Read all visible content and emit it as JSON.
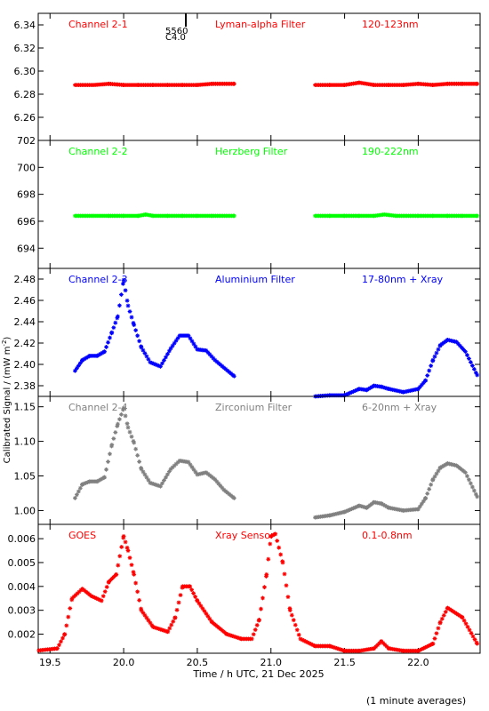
{
  "figure": {
    "ylabel": "Calibrated Signal / (mW m",
    "ylabel_sup": "-2",
    "ylabel_end": ")",
    "xlabel": "Time / h UTC, 21 Dec 2025",
    "footnote": "(1 minute averages)",
    "marker_labels": [
      "5560",
      "C4.0"
    ]
  },
  "chart_data": [
    {
      "type": "scatter",
      "name": "Channel 2-1",
      "filter": "Lyman-alpha Filter",
      "band": "120-123nm",
      "color": "#ff0000",
      "ylim": [
        6.24,
        6.35
      ],
      "yticks": [
        "6.26",
        "6.28",
        "6.30",
        "6.32",
        "6.34"
      ],
      "x": [
        19.67,
        19.8,
        19.9,
        20.0,
        20.1,
        20.2,
        20.3,
        20.4,
        20.5,
        20.6,
        20.75,
        21.3,
        21.4,
        21.5,
        21.6,
        21.7,
        21.8,
        21.9,
        22.0,
        22.1,
        22.2,
        22.3,
        22.4
      ],
      "y": [
        6.288,
        6.288,
        6.289,
        6.288,
        6.288,
        6.288,
        6.288,
        6.288,
        6.288,
        6.289,
        6.289,
        6.288,
        6.288,
        6.288,
        6.29,
        6.288,
        6.288,
        6.288,
        6.289,
        6.288,
        6.289,
        6.289,
        6.289
      ]
    },
    {
      "type": "scatter",
      "name": "Channel 2-2",
      "filter": "Herzberg Filter",
      "band": "190-222nm",
      "color": "#00ff00",
      "ylim": [
        692.5,
        702.0
      ],
      "yticks": [
        "694",
        "696",
        "698",
        "700",
        "702"
      ],
      "x": [
        19.67,
        19.8,
        19.9,
        20.0,
        20.1,
        20.15,
        20.2,
        20.3,
        20.4,
        20.5,
        20.6,
        20.75,
        21.3,
        21.4,
        21.5,
        21.6,
        21.7,
        21.77,
        21.85,
        22.0,
        22.1,
        22.2,
        22.3,
        22.4
      ],
      "y": [
        696.4,
        696.4,
        696.4,
        696.4,
        696.4,
        696.5,
        696.4,
        696.4,
        696.4,
        696.4,
        696.4,
        696.4,
        696.4,
        696.4,
        696.4,
        696.4,
        696.4,
        696.5,
        696.4,
        696.4,
        696.4,
        696.4,
        696.4,
        696.4
      ]
    },
    {
      "type": "scatter",
      "name": "Channel 2-3",
      "filter": "Aluminium Filter",
      "band": "17-80nm + Xray",
      "color": "#0000ff",
      "ylim": [
        2.37,
        2.49
      ],
      "yticks": [
        "2.38",
        "2.40",
        "2.42",
        "2.44",
        "2.46",
        "2.48"
      ],
      "x": [
        19.67,
        19.72,
        19.77,
        19.82,
        19.87,
        19.92,
        19.96,
        20.0,
        20.03,
        20.07,
        20.12,
        20.18,
        20.25,
        20.32,
        20.38,
        20.44,
        20.5,
        20.56,
        20.62,
        20.68,
        20.75,
        21.3,
        21.4,
        21.5,
        21.6,
        21.65,
        21.7,
        21.75,
        21.8,
        21.9,
        22.0,
        22.05,
        22.1,
        22.15,
        22.2,
        22.26,
        22.32,
        22.4
      ],
      "y": [
        2.394,
        2.404,
        2.408,
        2.408,
        2.412,
        2.43,
        2.445,
        2.479,
        2.455,
        2.437,
        2.416,
        2.402,
        2.398,
        2.415,
        2.427,
        2.427,
        2.414,
        2.413,
        2.404,
        2.397,
        2.389,
        2.37,
        2.371,
        2.371,
        2.377,
        2.376,
        2.38,
        2.379,
        2.377,
        2.374,
        2.377,
        2.385,
        2.404,
        2.418,
        2.423,
        2.421,
        2.412,
        2.39
      ]
    },
    {
      "type": "scatter",
      "name": "Channel 2-4",
      "filter": "Zirconium Filter",
      "band": "6-20nm + Xray",
      "color": "#808080",
      "ylim": [
        0.98,
        1.165
      ],
      "yticks": [
        "1.00",
        "1.05",
        "1.10",
        "1.15"
      ],
      "x": [
        19.67,
        19.72,
        19.77,
        19.82,
        19.87,
        19.92,
        19.96,
        20.0,
        20.03,
        20.07,
        20.12,
        20.18,
        20.25,
        20.32,
        20.38,
        20.44,
        20.5,
        20.56,
        20.62,
        20.68,
        20.75,
        21.3,
        21.4,
        21.5,
        21.6,
        21.65,
        21.7,
        21.75,
        21.8,
        21.9,
        22.0,
        22.05,
        22.1,
        22.15,
        22.2,
        22.26,
        22.32,
        22.4
      ],
      "y": [
        1.018,
        1.038,
        1.042,
        1.042,
        1.048,
        1.095,
        1.125,
        1.148,
        1.12,
        1.098,
        1.06,
        1.04,
        1.035,
        1.06,
        1.072,
        1.07,
        1.052,
        1.055,
        1.045,
        1.03,
        1.018,
        0.99,
        0.993,
        0.998,
        1.007,
        1.004,
        1.012,
        1.01,
        1.004,
        1.0,
        1.002,
        1.018,
        1.045,
        1.062,
        1.068,
        1.065,
        1.055,
        1.02
      ]
    },
    {
      "type": "scatter",
      "name": "GOES",
      "filter": "Xray Sensor",
      "band": "0.1-0.8nm",
      "color": "#ff0000",
      "ylim": [
        0.0012,
        0.0066
      ],
      "yticks": [
        "0.002",
        "0.003",
        "0.004",
        "0.005",
        "0.006"
      ],
      "x": [
        19.4,
        19.55,
        19.6,
        19.65,
        19.72,
        19.78,
        19.85,
        19.9,
        19.95,
        20.0,
        20.03,
        20.07,
        20.12,
        20.2,
        20.3,
        20.35,
        20.4,
        20.45,
        20.5,
        20.6,
        20.7,
        20.8,
        20.87,
        20.92,
        20.97,
        21.0,
        21.03,
        21.08,
        21.13,
        21.2,
        21.3,
        21.4,
        21.5,
        21.6,
        21.7,
        21.75,
        21.8,
        21.9,
        22.0,
        22.1,
        22.15,
        22.2,
        22.3,
        22.4
      ],
      "y": [
        0.0013,
        0.0014,
        0.002,
        0.0035,
        0.0039,
        0.0036,
        0.0034,
        0.0042,
        0.0045,
        0.0061,
        0.0055,
        0.0045,
        0.003,
        0.0023,
        0.0021,
        0.0027,
        0.004,
        0.004,
        0.0034,
        0.0025,
        0.002,
        0.0018,
        0.0018,
        0.0026,
        0.0045,
        0.0061,
        0.0062,
        0.005,
        0.003,
        0.0018,
        0.0015,
        0.0015,
        0.0013,
        0.0013,
        0.0014,
        0.0017,
        0.0014,
        0.0013,
        0.0013,
        0.0016,
        0.0025,
        0.0031,
        0.0027,
        0.0016
      ]
    }
  ],
  "xaxis": {
    "xlim": [
      19.42,
      22.42
    ],
    "ticks": [
      19.5,
      20.0,
      20.5,
      21.0,
      21.5,
      22.0
    ],
    "tick_labels": [
      "19.5",
      "20.0",
      "20.5",
      "21.0",
      "21.5",
      "22.0"
    ]
  }
}
